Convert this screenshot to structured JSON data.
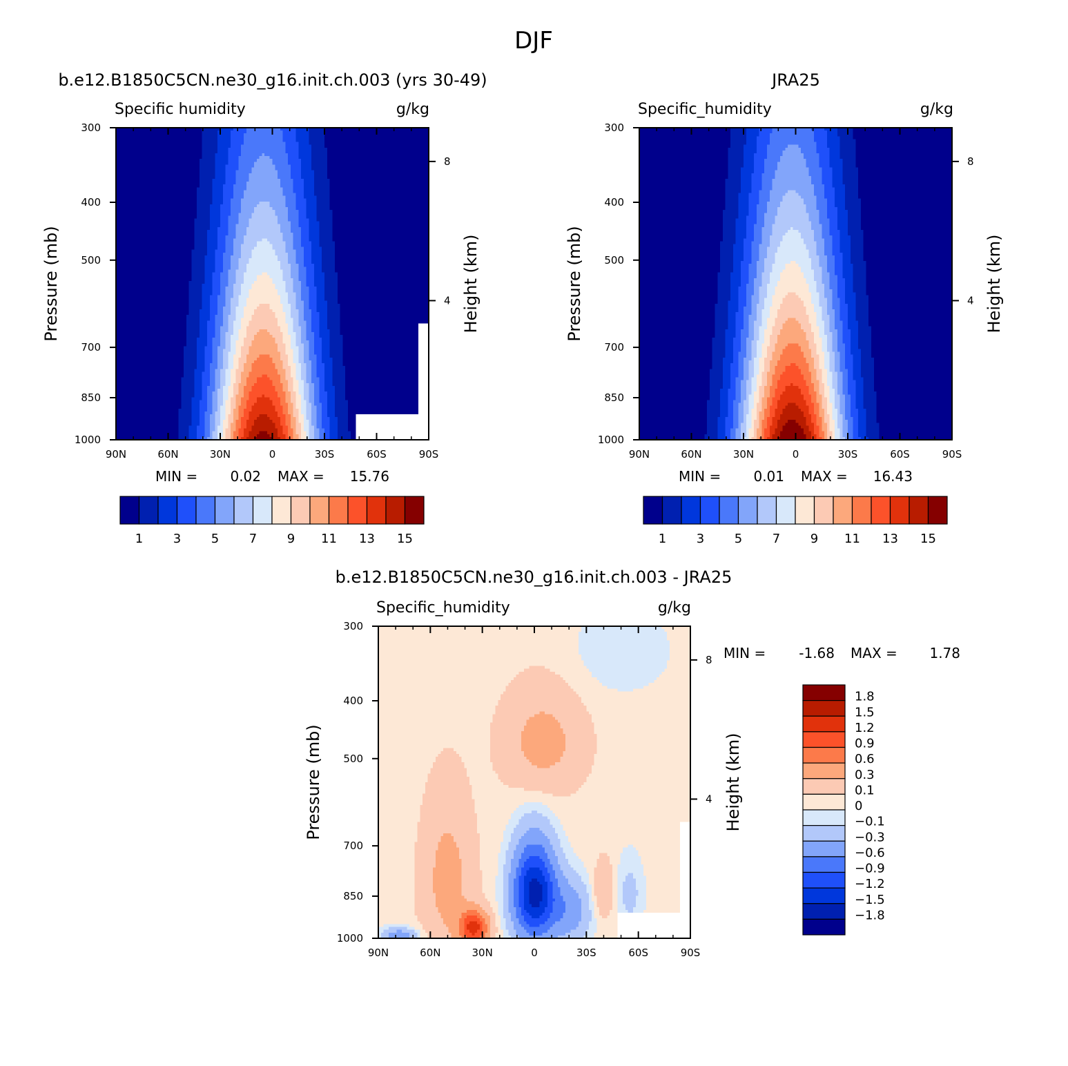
{
  "figure": {
    "title": "DJF"
  },
  "colors": {
    "abs": [
      "#00008c",
      "#0020b0",
      "#0037dc",
      "#1f50fa",
      "#4a78fa",
      "#82a5fa",
      "#b2c8fa",
      "#d8e8fa",
      "#fde8d6",
      "#fccab4",
      "#fca87c",
      "#fc7a4a",
      "#fc522a",
      "#e1320c",
      "#b81c00",
      "#850000"
    ],
    "diff": [
      "#00008c",
      "#0020b0",
      "#0037dc",
      "#1f50fa",
      "#4a78fa",
      "#82a5fa",
      "#b2c8fa",
      "#d8e8fa",
      "#fde8d6",
      "#fccab4",
      "#fca87c",
      "#fc7a4a",
      "#fc522a",
      "#e1320c",
      "#b81c00",
      "#850000"
    ]
  },
  "chart_data": [
    {
      "type": "heatmap",
      "title": "b.e12.B1850C5CN.ne30_g16.init.ch.003 (yrs 30-49)",
      "left_label": "Specific humidity",
      "right_label": "g/kg",
      "xlabel": "",
      "ylabel": "Pressure (mb)",
      "ylabel_right": "Height (km)",
      "xticks": [
        "90N",
        "60N",
        "30N",
        "0",
        "30S",
        "60S",
        "90S"
      ],
      "yticks": [
        300,
        400,
        500,
        700,
        850,
        1000
      ],
      "yticks_right": [
        8,
        4
      ],
      "stat_min_label": "MIN =",
      "stat_min": "0.02",
      "stat_max_label": "MAX =",
      "stat_max": "15.76",
      "levels": [
        1,
        2,
        3,
        4,
        5,
        6,
        7,
        8,
        9,
        10,
        11,
        12,
        13,
        14,
        15
      ],
      "colorbar_labels": [
        "1",
        "3",
        "5",
        "7",
        "9",
        "11",
        "13",
        "15"
      ]
    },
    {
      "type": "heatmap",
      "title": "JRA25",
      "left_label": "Specific_humidity",
      "right_label": "g/kg",
      "xlabel": "",
      "ylabel": "Pressure (mb)",
      "ylabel_right": "Height (km)",
      "xticks": [
        "90N",
        "60N",
        "30N",
        "0",
        "30S",
        "60S",
        "90S"
      ],
      "yticks": [
        300,
        400,
        500,
        700,
        850,
        1000
      ],
      "yticks_right": [
        8,
        4
      ],
      "stat_min_label": "MIN =",
      "stat_min": "0.01",
      "stat_max_label": "MAX =",
      "stat_max": "16.43",
      "levels": [
        1,
        2,
        3,
        4,
        5,
        6,
        7,
        8,
        9,
        10,
        11,
        12,
        13,
        14,
        15
      ],
      "colorbar_labels": [
        "1",
        "3",
        "5",
        "7",
        "9",
        "11",
        "13",
        "15"
      ]
    },
    {
      "type": "heatmap",
      "title": "b.e12.B1850C5CN.ne30_g16.init.ch.003 - JRA25",
      "left_label": "Specific_humidity",
      "right_label": "g/kg",
      "xlabel": "",
      "ylabel": "Pressure (mb)",
      "ylabel_right": "Height (km)",
      "xticks": [
        "90N",
        "60N",
        "30N",
        "0",
        "30S",
        "60S",
        "90S"
      ],
      "yticks": [
        300,
        400,
        500,
        700,
        850,
        1000
      ],
      "yticks_right": [
        8,
        4
      ],
      "stat_min_label": "MIN =",
      "stat_min": "-1.68",
      "stat_max_label": "MAX =",
      "stat_max": "1.78",
      "levels": [
        -1.8,
        -1.5,
        -1.2,
        -0.9,
        -0.6,
        -0.3,
        -0.1,
        0,
        0.1,
        0.3,
        0.6,
        0.9,
        1.2,
        1.5,
        1.8
      ],
      "colorbar_labels": [
        "1.8",
        "1.5",
        "1.2",
        "0.9",
        "0.6",
        "0.3",
        "0.1",
        "0",
        "−0.1",
        "−0.3",
        "−0.6",
        "−0.9",
        "−1.2",
        "−1.5",
        "−1.8"
      ]
    }
  ]
}
